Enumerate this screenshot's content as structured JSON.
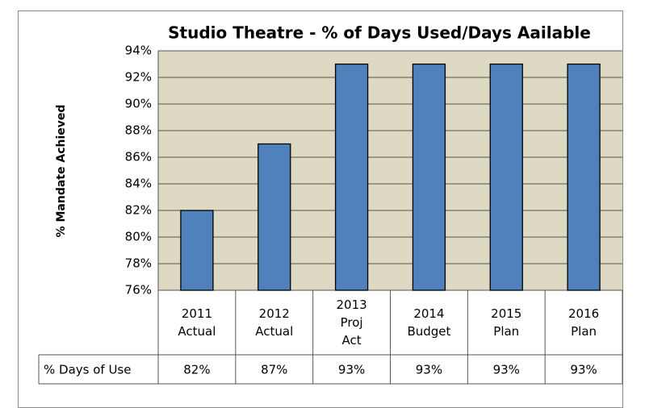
{
  "chart_data": {
    "type": "bar",
    "title": "Studio Theatre - % of Days Used/Days Aailable",
    "y_label": "% Mandate Achieved",
    "categories": [
      "2011 Actual",
      "2012 Actual",
      "2013 Proj Act",
      "2014 Budget",
      "2015 Plan",
      "2016 Plan"
    ],
    "series": [
      {
        "name": "% Days of Use",
        "color": "#4f81bd",
        "values": [
          82,
          87,
          93,
          93,
          93,
          93
        ],
        "value_labels": [
          "82%",
          "87%",
          "93%",
          "93%",
          "93%",
          "93%"
        ]
      }
    ],
    "ylim": [
      76,
      94
    ],
    "yticks": [
      {
        "value": 76,
        "label": "76%"
      },
      {
        "value": 78,
        "label": "78%"
      },
      {
        "value": 80,
        "label": "80%"
      },
      {
        "value": 82,
        "label": "82%"
      },
      {
        "value": 84,
        "label": "84%"
      },
      {
        "value": 86,
        "label": "86%"
      },
      {
        "value": 88,
        "label": "88%"
      },
      {
        "value": 90,
        "label": "90%"
      },
      {
        "value": 92,
        "label": "92%"
      },
      {
        "value": 94,
        "label": "94%"
      }
    ],
    "grid": true,
    "plot_background": "#ddd9c3"
  }
}
